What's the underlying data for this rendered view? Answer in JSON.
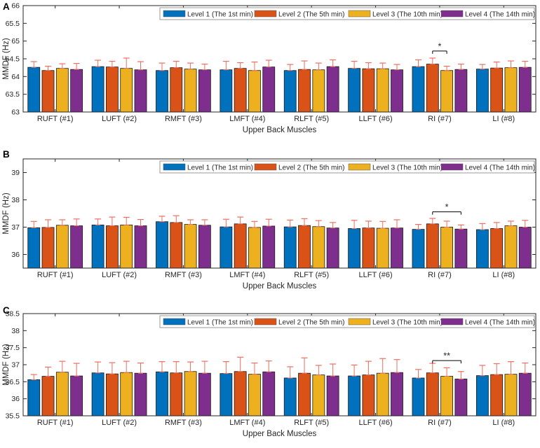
{
  "figure_name": "MMDF of upper back muscles at four exertion levels",
  "shared": {
    "x_axis_label": "Upper Back Muscles",
    "y_axis_label": "MMDF (Hz)",
    "axis_color": "#262626",
    "error_bar_color": "#EF6E5F",
    "bar_edge_color": "#1a1a1a",
    "legend_border_color": "#9a9a9a"
  },
  "chart_data": [
    {
      "type": "bar",
      "panel": "A",
      "xlabel": "Upper Back Muscles",
      "ylabel": "MMDF (Hz)",
      "ylim": [
        63,
        66
      ],
      "yticks": [
        63,
        63.5,
        64,
        64.5,
        65,
        65.5,
        66
      ],
      "legend_position": "top-right-inside",
      "grid": false,
      "categories": [
        "RUFT (#1)",
        "LUFT (#2)",
        "RMFT (#3)",
        "LMFT (#4)",
        "RLFT (#5)",
        "LLFT (#6)",
        "RI (#7)",
        "LI (#8)"
      ],
      "series": [
        {
          "name": "Level 1 (The 1st min)",
          "color": "#0072BD",
          "values": [
            64.26,
            64.28,
            64.17,
            64.19,
            64.17,
            64.23,
            64.28,
            64.21
          ],
          "errors": [
            0.16,
            0.18,
            0.21,
            0.24,
            0.17,
            0.2,
            0.19,
            0.13
          ]
        },
        {
          "name": "Level 2 (The 5th min)",
          "color": "#D95319",
          "values": [
            64.17,
            64.27,
            64.25,
            64.23,
            64.2,
            64.22,
            64.35,
            64.24
          ],
          "errors": [
            0.12,
            0.16,
            0.18,
            0.16,
            0.24,
            0.17,
            0.17,
            0.17
          ]
        },
        {
          "name": "Level 3 (The 10th min)",
          "color": "#EDB120",
          "values": [
            64.23,
            64.23,
            64.21,
            64.17,
            64.19,
            64.22,
            64.17,
            64.25
          ],
          "errors": [
            0.13,
            0.29,
            0.17,
            0.24,
            0.19,
            0.16,
            0.12,
            0.19
          ]
        },
        {
          "name": "Level 4 (The 14th min)",
          "color": "#7E2F8E",
          "values": [
            64.2,
            64.19,
            64.19,
            64.27,
            64.28,
            64.19,
            64.2,
            64.26
          ],
          "errors": [
            0.17,
            0.23,
            0.16,
            0.19,
            0.19,
            0.15,
            0.15,
            0.17
          ]
        }
      ],
      "significance": {
        "category_index": 6,
        "from_series": 1,
        "to_series": 2,
        "label": "*",
        "y": 64.72
      }
    },
    {
      "type": "bar",
      "panel": "B",
      "xlabel": "Upper Back Muscles",
      "ylabel": "MMDF (Hz)",
      "ylim": [
        35.5,
        39.5
      ],
      "yticks": [
        36,
        37,
        38,
        39
      ],
      "legend_position": "top-right-inside",
      "grid": false,
      "categories": [
        "RUFT (#1)",
        "LUFT (#2)",
        "RMFT (#3)",
        "LMFT (#4)",
        "RLFT (#5)",
        "LLFT (#6)",
        "RI (#7)",
        "LI (#8)"
      ],
      "series": [
        {
          "name": "Level 1 (The 1st min)",
          "color": "#0072BD",
          "values": [
            36.98,
            37.08,
            37.2,
            37.01,
            37.01,
            36.95,
            36.92,
            36.91
          ],
          "errors": [
            0.23,
            0.22,
            0.2,
            0.28,
            0.25,
            0.3,
            0.18,
            0.22
          ]
        },
        {
          "name": "Level 2 (The 5th min)",
          "color": "#D95319",
          "values": [
            36.99,
            37.05,
            37.17,
            37.12,
            37.06,
            36.97,
            37.12,
            36.95
          ],
          "errors": [
            0.28,
            0.32,
            0.25,
            0.25,
            0.25,
            0.25,
            0.2,
            0.22
          ]
        },
        {
          "name": "Level 3 (The 10th min)",
          "color": "#EDB120",
          "values": [
            37.07,
            37.08,
            37.1,
            36.99,
            37.02,
            36.96,
            37.0,
            37.05
          ],
          "errors": [
            0.2,
            0.28,
            0.17,
            0.22,
            0.22,
            0.25,
            0.22,
            0.17
          ]
        },
        {
          "name": "Level 4 (The 14th min)",
          "color": "#7E2F8E",
          "values": [
            37.05,
            37.05,
            37.07,
            37.04,
            36.97,
            36.97,
            36.93,
            37.0
          ],
          "errors": [
            0.25,
            0.23,
            0.2,
            0.25,
            0.2,
            0.3,
            0.15,
            0.25
          ]
        }
      ],
      "significance": {
        "category_index": 6,
        "from_series": 1,
        "to_series": 3,
        "label": "*",
        "y": 37.56
      }
    },
    {
      "type": "bar",
      "panel": "C",
      "xlabel": "Upper Back Muscles",
      "ylabel": "MMDF (Hz)",
      "ylim": [
        35.5,
        38.5
      ],
      "yticks": [
        35.5,
        36,
        36.5,
        37,
        37.5,
        38,
        38.5
      ],
      "legend_position": "top-right-inside",
      "grid": false,
      "categories": [
        "RUFT (#1)",
        "LUFT (#2)",
        "RMFT (#3)",
        "LMFT (#4)",
        "RLFT (#5)",
        "LLFT (#6)",
        "RI (#7)",
        "LI (#8)"
      ],
      "series": [
        {
          "name": "Level 1 (The 1st min)",
          "color": "#0072BD",
          "values": [
            36.56,
            36.76,
            36.79,
            36.74,
            36.61,
            36.67,
            36.61,
            36.68
          ],
          "errors": [
            0.15,
            0.32,
            0.3,
            0.35,
            0.33,
            0.32,
            0.25,
            0.3
          ]
        },
        {
          "name": "Level 2 (The 5th min)",
          "color": "#D95319",
          "values": [
            36.66,
            36.73,
            36.76,
            36.8,
            36.75,
            36.7,
            36.76,
            36.71
          ],
          "errors": [
            0.27,
            0.33,
            0.33,
            0.42,
            0.45,
            0.4,
            0.28,
            0.32
          ]
        },
        {
          "name": "Level 3 (The 10th min)",
          "color": "#EDB120",
          "values": [
            36.78,
            36.77,
            36.8,
            36.72,
            36.7,
            36.75,
            36.66,
            36.72
          ],
          "errors": [
            0.32,
            0.33,
            0.28,
            0.33,
            0.28,
            0.43,
            0.25,
            0.37
          ]
        },
        {
          "name": "Level 4 (The 14th min)",
          "color": "#7E2F8E",
          "values": [
            36.67,
            36.75,
            36.75,
            36.79,
            36.67,
            36.77,
            36.58,
            36.75
          ],
          "errors": [
            0.37,
            0.3,
            0.35,
            0.32,
            0.35,
            0.38,
            0.22,
            0.3
          ]
        }
      ],
      "significance": {
        "category_index": 6,
        "from_series": 1,
        "to_series": 3,
        "label": "**",
        "y": 37.12
      }
    }
  ]
}
